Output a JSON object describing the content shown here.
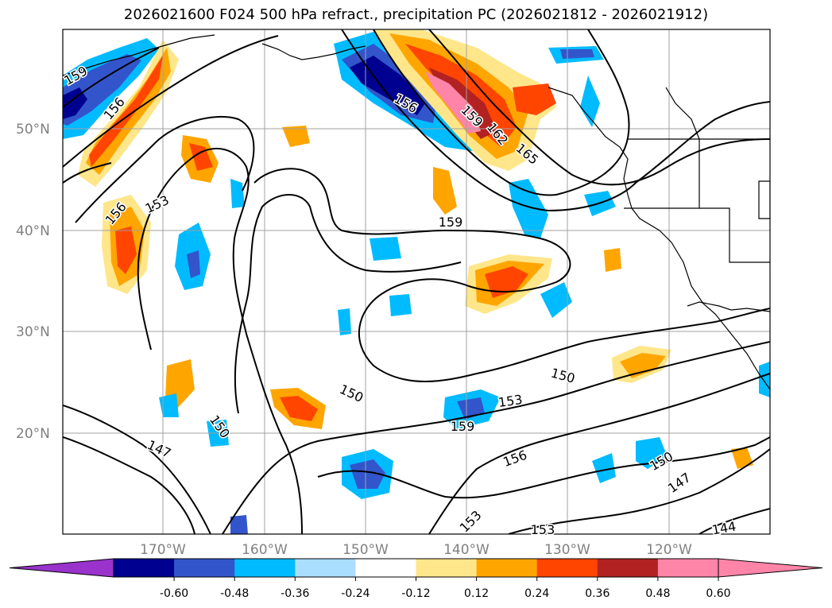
{
  "title": "2026021600 F024 500 hPa refract., precipitation PC (2026021812 - 2026021912)",
  "lat_labels": [
    "50°N",
    "40°N",
    "30°N",
    "20°N"
  ],
  "lon_labels": [
    "170°W",
    "160°W",
    "150°W",
    "140°W",
    "130°W",
    "120°W"
  ],
  "contour_labels": [
    "159",
    "156",
    "156",
    "153",
    "156",
    "159",
    "162",
    "165",
    "159",
    "150",
    "153",
    "150",
    "159",
    "150",
    "147",
    "156",
    "153",
    "153",
    "150",
    "147",
    "144"
  ],
  "colorbar": {
    "ticks": [
      "-0.60",
      "-0.48",
      "-0.36",
      "-0.24",
      "-0.12",
      "0.12",
      "0.24",
      "0.36",
      "0.48",
      "0.60"
    ],
    "colors": {
      "under": "#9933cc",
      "bins": [
        "#000090",
        "#3355cc",
        "#00bbff",
        "#aadeff",
        "#ffffff",
        "#ffe68a",
        "#ffa500",
        "#ff4500",
        "#b22222",
        "#ff85a8"
      ],
      "over": "#ff85a8"
    }
  }
}
